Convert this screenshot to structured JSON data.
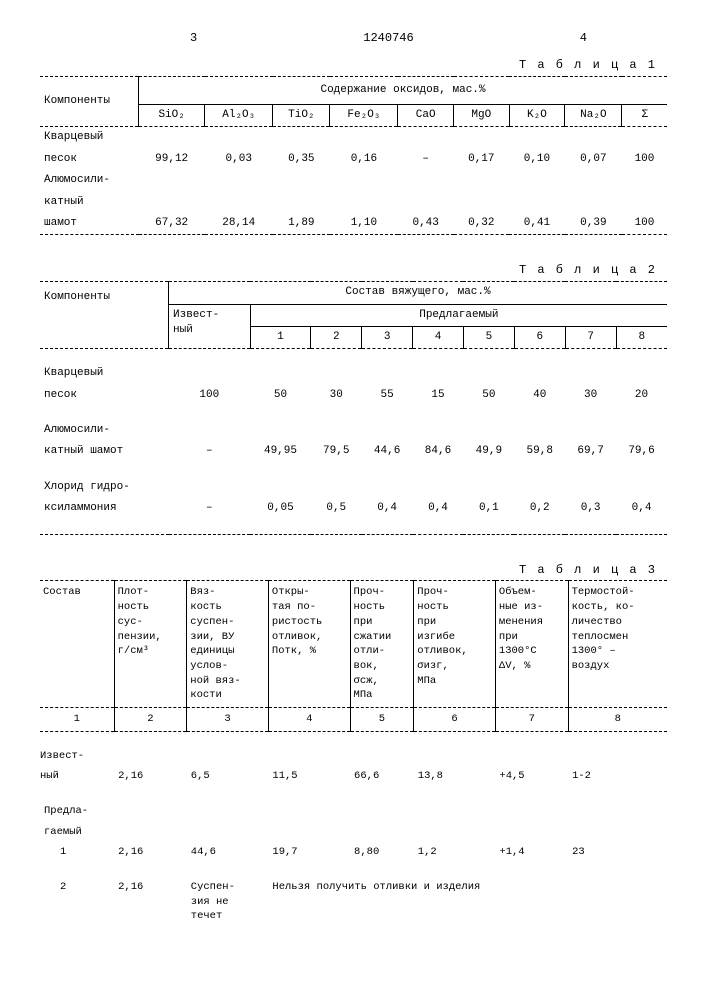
{
  "page": {
    "left_num": "3",
    "docnum": "1240746",
    "right_num": "4"
  },
  "t1": {
    "label": "Т а б л и ц а  1",
    "row_header": "Компоненты",
    "group_header": "Содержание оксидов, мас.%",
    "cols": [
      "SiO₂",
      "Al₂O₃",
      "TiO₂",
      "Fe₂O₃",
      "CaO",
      "MgO",
      "K₂O",
      "Na₂O",
      "Σ"
    ],
    "rows": [
      {
        "name1": "Кварцевый",
        "name2": "песок",
        "vals": [
          "99,12",
          "0,03",
          "0,35",
          "0,16",
          "–",
          "0,17",
          "0,10",
          "0,07",
          "100"
        ]
      },
      {
        "name1": "Алюмосили-",
        "name2": "катный",
        "name3": "шамот",
        "vals": [
          "67,32",
          "28,14",
          "1,89",
          "1,10",
          "0,43",
          "0,32",
          "0,41",
          "0,39",
          "100"
        ]
      }
    ]
  },
  "t2": {
    "label": "Т а б л и ц а  2",
    "row_header": "Компоненты",
    "group_header": "Состав вяжущего, мас.%",
    "known_label": "Извест-",
    "known_label2": "ный",
    "proposed_label": "Предлагаемый",
    "num_cols": [
      "1",
      "2",
      "3",
      "4",
      "5",
      "6",
      "7",
      "8"
    ],
    "rows": [
      {
        "name1": "Кварцевый",
        "name2": "песок",
        "known": "100",
        "vals": [
          "50",
          "30",
          "55",
          "15",
          "50",
          "40",
          "30",
          "20"
        ]
      },
      {
        "name1": "Алюмосили-",
        "name2": "катный шамот",
        "known": "–",
        "vals": [
          "49,95",
          "79,5",
          "44,6",
          "84,6",
          "49,9",
          "59,8",
          "69,7",
          "79,6"
        ]
      },
      {
        "name1": "Хлорид гидро-",
        "name2": "ксиламмония",
        "known": "–",
        "vals": [
          "0,05",
          "0,5",
          "0,4",
          "0,4",
          "0,1",
          "0,2",
          "0,3",
          "0,4"
        ]
      }
    ]
  },
  "t3": {
    "label": "Т а б л и ц а  3",
    "cols": [
      "Состав",
      "Плот-\nность\nсус-\nпензии,\nг/см³",
      "Вяз-\nкость\nсуспен-\nзии, ВУ\nединицы\nуслов-\nной вяз-\nкости",
      "Откры-\nтая по-\nристость\nотливок,\nПотк, %",
      "Проч-\nность\nпри\nсжатии\nотли-\nвок,\nσсж,\nМПа",
      "Проч-\nность\nпри\nизгибе\nотливок,\nσизг,\nМПа",
      "Объем-\nные из-\nменения\nпри\n1300°С\nΔV, %",
      "Термостой-\nкость, ко-\nличество\nтеплосмен\n1300° –\nвоздух"
    ],
    "colnums": [
      "1",
      "2",
      "3",
      "4",
      "5",
      "6",
      "7",
      "8"
    ],
    "rows": [
      {
        "name1": "Извест-",
        "name2": "ный",
        "vals": [
          "2,16",
          "6,5",
          "11,5",
          "66,6",
          "13,8",
          "+4,5",
          "1-2"
        ]
      },
      {
        "section1": "Предла-",
        "section2": "гаемый"
      },
      {
        "name": "1",
        "vals": [
          "2,16",
          "44,6",
          "19,7",
          "8,80",
          "1,2",
          "+1,4",
          "23"
        ]
      },
      {
        "name": "2",
        "vals": [
          "2,16",
          "Суспен-\nзия не\nтечет",
          "Нельзя получить отливки и изделия",
          "",
          "",
          "",
          ""
        ]
      }
    ]
  }
}
